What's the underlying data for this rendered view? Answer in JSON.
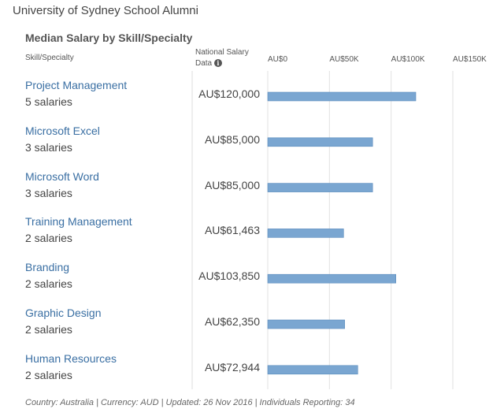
{
  "page": {
    "title": "University of Sydney School Alumni"
  },
  "table": {
    "skill_header": "Skill/Specialty",
    "national_header_line1": "National Salary",
    "national_header_line2": "Data",
    "info_icon": "info-icon",
    "footer": "Country: Australia | Currency: AUD | Updated: 26 Nov 2016 | Individuals Reporting: 34"
  },
  "chart_data": {
    "type": "bar",
    "orientation": "horizontal",
    "title": "Median Salary by Skill/Specialty",
    "xlabel": "",
    "ylabel": "Skill/Specialty",
    "xlim": [
      0,
      150000
    ],
    "ticks": [
      0,
      50000,
      100000,
      150000
    ],
    "tick_labels": [
      "AU$0",
      "AU$50K",
      "AU$100K",
      "AU$150K"
    ],
    "grid": true,
    "bar_color": "#7aa6d1",
    "categories": [
      "Project Management",
      "Microsoft Excel",
      "Microsoft Word",
      "Training Management",
      "Branding",
      "Graphic Design",
      "Human Resources"
    ],
    "counts": [
      "5 salaries",
      "3 salaries",
      "3 salaries",
      "2 salaries",
      "2 salaries",
      "2 salaries",
      "2 salaries"
    ],
    "value_labels": [
      "AU$120,000",
      "AU$85,000",
      "AU$85,000",
      "AU$61,463",
      "AU$103,850",
      "AU$62,350",
      "AU$72,944"
    ],
    "values": [
      120000,
      85000,
      85000,
      61463,
      103850,
      62350,
      72944
    ]
  }
}
